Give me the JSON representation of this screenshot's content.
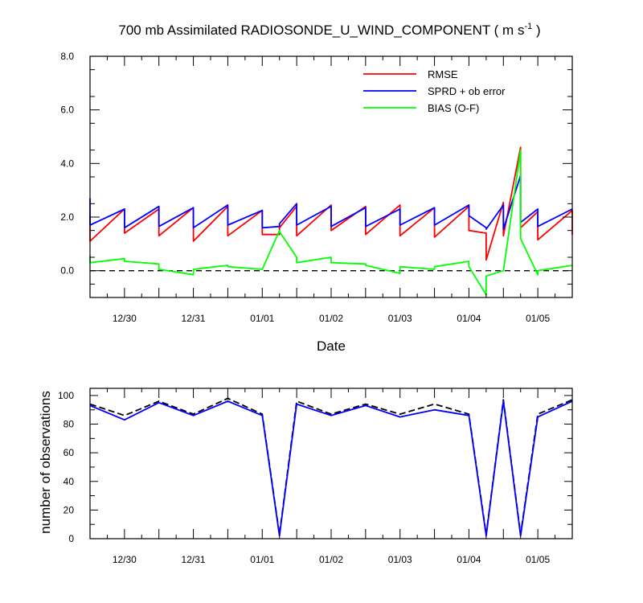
{
  "chart_data": [
    {
      "type": "line",
      "title": "700 mb Assimilated RADIOSONDE_U_WIND_COMPONENT ( m s",
      "title_superscript": "-1",
      "title_suffix": " )",
      "xlabel": "Date",
      "ylabel": "",
      "ylim": [
        -1,
        8
      ],
      "xlim": [
        0,
        14
      ],
      "yticks": [
        8,
        6,
        4,
        2,
        0
      ],
      "ytick_labels": [
        "8.0",
        "6.0",
        "4.0",
        "2.0",
        "0.0"
      ],
      "xticks": [
        1,
        3,
        5,
        7,
        9,
        11,
        13
      ],
      "xtick_labels": [
        "12/30",
        "12/31",
        "01/01",
        "01/02",
        "01/03",
        "01/04",
        "01/05"
      ],
      "minor_yticks": [
        -0.5,
        0.5,
        1.5,
        2.5,
        3.5,
        4.5,
        5.5,
        6.5,
        7.5
      ],
      "zero_line": true,
      "legend": [
        {
          "label": "RMSE",
          "color": "#ff0000"
        },
        {
          "label": "SPRD + ob error",
          "color": "#0000ff"
        },
        {
          "label": "BIAS (O-F)",
          "color": "#00ff00"
        }
      ],
      "series": [
        {
          "name": "RMSE",
          "color": "#ff0000",
          "x": [
            0,
            0,
            1,
            1,
            2,
            2,
            3,
            3,
            4,
            4,
            5,
            5,
            5.5,
            5.5,
            6,
            6,
            7,
            7,
            8,
            8,
            9,
            9,
            10,
            10,
            11,
            11,
            11.5,
            11.5,
            12,
            12,
            12.5,
            12.5,
            13,
            13,
            14,
            14
          ],
          "y": [
            2.1,
            1.1,
            2.3,
            1.4,
            2.3,
            1.3,
            2.35,
            1.1,
            2.4,
            1.3,
            2.25,
            1.35,
            1.35,
            1.6,
            2.4,
            1.3,
            2.45,
            1.5,
            2.4,
            1.35,
            2.45,
            1.3,
            2.35,
            1.25,
            2.4,
            1.5,
            1.4,
            0.4,
            2.55,
            1.3,
            4.6,
            1.6,
            2.2,
            1.15,
            2.25,
            1.35
          ]
        },
        {
          "name": "SPRD + ob error",
          "color": "#0000ff",
          "x": [
            0,
            0,
            1,
            1,
            2,
            2,
            3,
            3,
            4,
            4,
            5,
            5,
            5.5,
            5.5,
            6,
            6,
            7,
            7,
            8,
            8,
            9,
            9,
            10,
            10,
            11,
            11,
            11.5,
            11.5,
            12,
            12,
            12.5,
            12.5,
            13,
            13,
            14
          ],
          "y": [
            2.7,
            1.7,
            2.3,
            1.6,
            2.4,
            1.65,
            2.35,
            1.6,
            2.45,
            1.7,
            2.25,
            1.6,
            1.65,
            1.75,
            2.5,
            1.7,
            2.4,
            1.65,
            2.35,
            1.65,
            2.3,
            1.7,
            2.35,
            1.7,
            2.45,
            2.05,
            1.6,
            1.55,
            2.45,
            1.55,
            3.55,
            1.8,
            2.3,
            1.65,
            2.3
          ]
        },
        {
          "name": "BIAS (O-F)",
          "color": "#00ff00",
          "x": [
            0,
            0,
            1,
            1,
            2,
            2,
            3,
            3,
            4,
            4,
            5,
            5,
            5.5,
            5.5,
            6,
            6,
            7,
            7,
            8,
            8,
            9,
            9,
            10,
            10,
            11,
            11,
            11.5,
            11.5,
            12,
            12,
            12.5,
            12.5,
            13,
            13,
            14
          ],
          "y": [
            0.55,
            0.3,
            0.45,
            0.35,
            0.25,
            0.05,
            -0.15,
            0.05,
            0.2,
            0.15,
            0.05,
            0.05,
            1.5,
            1.45,
            0.5,
            0.3,
            0.5,
            0.3,
            0.25,
            0.2,
            -0.1,
            0.15,
            0.05,
            0.15,
            0.35,
            0.15,
            -0.9,
            -0.2,
            0.0,
            0.0,
            4.5,
            1.2,
            -0.15,
            0.0,
            0.2
          ]
        }
      ]
    },
    {
      "type": "line",
      "title": "",
      "xlabel": "",
      "ylabel": "number of observations",
      "ylim": [
        0,
        105
      ],
      "xlim": [
        0,
        14
      ],
      "yticks": [
        100,
        80,
        60,
        40,
        20,
        0
      ],
      "ytick_labels": [
        "100",
        "80",
        "60",
        "40",
        "20",
        "0"
      ],
      "xticks": [
        1,
        3,
        5,
        7,
        9,
        11,
        13
      ],
      "xtick_labels": [
        "12/30",
        "12/31",
        "01/01",
        "01/02",
        "01/03",
        "01/04",
        "01/05"
      ],
      "series": [
        {
          "name": "possible",
          "color": "#000000",
          "dashed": true,
          "x": [
            0,
            1,
            2,
            3,
            4,
            5,
            5.5,
            6,
            7,
            8,
            9,
            10,
            11,
            11.5,
            12,
            12.5,
            13,
            14
          ],
          "y": [
            94,
            86,
            96,
            87,
            98,
            87,
            3,
            96,
            87,
            94,
            87,
            94,
            87,
            3,
            97,
            3,
            87,
            97
          ]
        },
        {
          "name": "assimilated",
          "color": "#0000ff",
          "x": [
            0,
            1,
            2,
            3,
            4,
            5,
            5.5,
            6,
            7,
            8,
            9,
            10,
            11,
            11.5,
            12,
            12.5,
            13,
            14
          ],
          "y": [
            93,
            83,
            95,
            86,
            96,
            86,
            2,
            94,
            86,
            93,
            85,
            90,
            86,
            2,
            96,
            2,
            85,
            96
          ]
        }
      ]
    }
  ]
}
